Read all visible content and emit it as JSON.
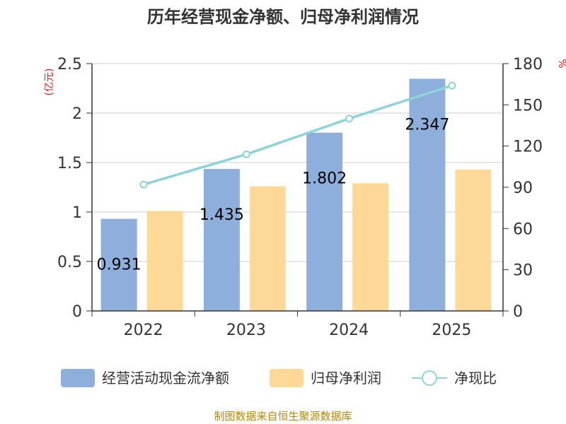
{
  "chart_data": {
    "type": "bar",
    "title": "历年经营现金净额、归母净利润情况",
    "categories": [
      "2022",
      "2023",
      "2024",
      "2025"
    ],
    "series": [
      {
        "name": "经营活动现金流净额",
        "kind": "bar",
        "axis": "left",
        "values": [
          0.931,
          1.435,
          1.802,
          2.347
        ],
        "labels": [
          "0.931",
          "1.435",
          "1.802",
          "2.347"
        ],
        "color": "#8eaedc"
      },
      {
        "name": "归母净利润",
        "kind": "bar",
        "axis": "left",
        "values": [
          1.01,
          1.26,
          1.29,
          1.43
        ],
        "color": "#fed896"
      },
      {
        "name": "净现比",
        "kind": "line",
        "axis": "right",
        "values": [
          92,
          114,
          140,
          164
        ],
        "color": "#8dd3d8"
      }
    ],
    "y_left": {
      "label": "(亿元)",
      "ylim": [
        0,
        2.5
      ],
      "ticks": [
        "0",
        "0.5",
        "1",
        "1.5",
        "2",
        "2.5"
      ]
    },
    "y_right": {
      "label": "%",
      "ylim": [
        0,
        180
      ],
      "ticks": [
        "0",
        "30",
        "60",
        "90",
        "120",
        "150",
        "180"
      ]
    },
    "legend": "bottom",
    "grid": true
  },
  "footer": {
    "source": "制图数据来自恒生聚源数据库"
  },
  "colors": {
    "title": "#333333",
    "axis_label": "#e0161b",
    "footer": "#b8860b",
    "grid": "#cccccc",
    "axis": "#333333",
    "text": "#333333"
  }
}
